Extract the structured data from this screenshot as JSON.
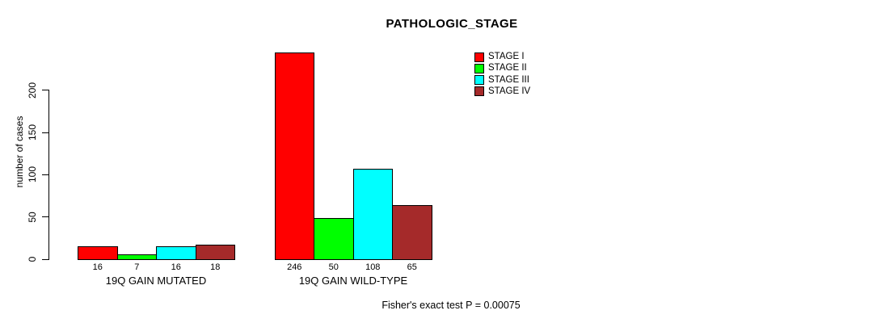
{
  "chart_data": {
    "type": "bar",
    "title": "PATHOLOGIC_STAGE",
    "ylabel": "number of cases",
    "xlabel": "",
    "ylim": [
      0,
      250
    ],
    "yticks": [
      0,
      50,
      100,
      150,
      200
    ],
    "grid": false,
    "legend_position": "top-right",
    "categories": [
      "19Q GAIN MUTATED",
      "19Q GAIN WILD-TYPE"
    ],
    "series": [
      {
        "name": "STAGE I",
        "color": "#FF0000",
        "values": [
          16,
          246
        ]
      },
      {
        "name": "STAGE II",
        "color": "#00FF00",
        "values": [
          7,
          50
        ]
      },
      {
        "name": "STAGE III",
        "color": "#00FFFF",
        "values": [
          16,
          108
        ]
      },
      {
        "name": "STAGE IV",
        "color": "#A52A2A",
        "values": [
          18,
          65
        ]
      }
    ],
    "bar_value_labels": [
      [
        16,
        7,
        16,
        18
      ],
      [
        246,
        50,
        108,
        65
      ]
    ],
    "annotation": "Fisher's exact test P = 0.00075"
  }
}
